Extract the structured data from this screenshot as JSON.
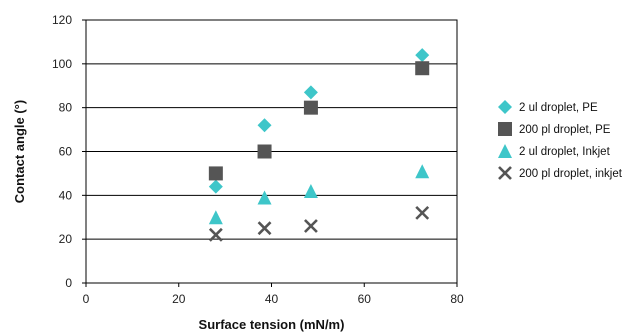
{
  "chart_data": {
    "type": "scatter",
    "title": "",
    "xlabel": "Surface tension (mN/m)",
    "ylabel": "Contact angle (°)",
    "xlim": [
      0,
      80
    ],
    "ylim": [
      0,
      120
    ],
    "x_ticks": [
      "0",
      "20",
      "40",
      "60",
      "80"
    ],
    "y_ticks": [
      "0",
      "20",
      "40",
      "60",
      "80",
      "100",
      "120"
    ],
    "grid": "horizontal",
    "legend_position": "right",
    "series": [
      {
        "name": "2 ul droplet, PE",
        "marker": "diamond",
        "color": "#3ec6c9",
        "points": [
          [
            28,
            44
          ],
          [
            38.5,
            72
          ],
          [
            48.5,
            87
          ],
          [
            72.5,
            104
          ]
        ]
      },
      {
        "name": "200 pl droplet, PE",
        "marker": "square",
        "color": "#555555",
        "points": [
          [
            28,
            50
          ],
          [
            38.5,
            60
          ],
          [
            48.5,
            80
          ],
          [
            72.5,
            98
          ]
        ]
      },
      {
        "name": "2 ul droplet, Inkjet",
        "marker": "triangle",
        "color": "#3ec6c9",
        "points": [
          [
            28,
            30
          ],
          [
            38.5,
            39
          ],
          [
            48.5,
            42
          ],
          [
            72.5,
            51
          ]
        ]
      },
      {
        "name": "200 pl droplet, inkjet",
        "marker": "x",
        "color": "#555555",
        "points": [
          [
            28,
            22
          ],
          [
            38.5,
            25
          ],
          [
            48.5,
            26
          ],
          [
            72.5,
            32
          ]
        ]
      }
    ]
  }
}
